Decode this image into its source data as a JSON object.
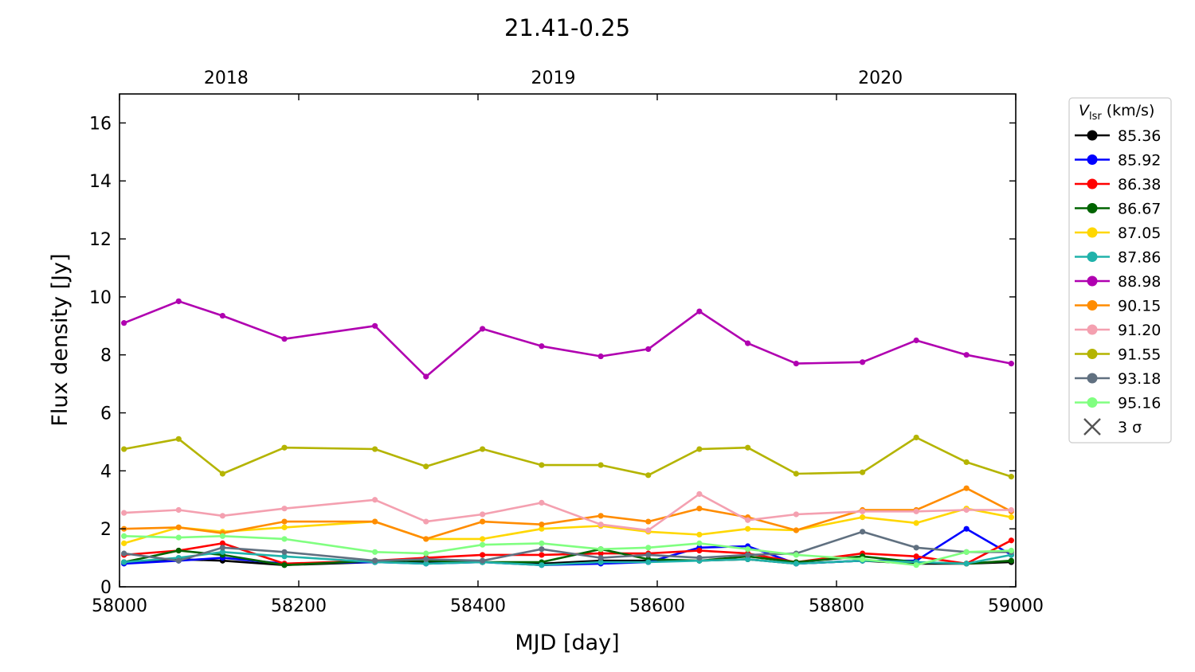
{
  "chart_data": {
    "type": "line",
    "title": "21.41-0.25",
    "xlabel": "MJD [day]",
    "ylabel": "Flux density [Jy]",
    "xlim": [
      58000,
      59000
    ],
    "ylim": [
      0,
      17
    ],
    "x_ticks": [
      58000,
      58200,
      58400,
      58600,
      58800,
      59000
    ],
    "y_ticks": [
      0,
      2,
      4,
      6,
      8,
      10,
      12,
      14,
      16
    ],
    "top_axis": {
      "labels": [
        "2018",
        "2019",
        "2020"
      ],
      "positions": [
        58119,
        58484,
        58849
      ]
    },
    "grid": false,
    "legend": {
      "title_symbol": "V",
      "title_subscript": "lsr",
      "title_unit": "(km/s)",
      "placement": "outside-right",
      "sigma_label": "3 σ"
    },
    "x": [
      58005,
      58066,
      58115,
      58184,
      58285,
      58342,
      58405,
      58471,
      58537,
      58590,
      58647,
      58701,
      58755,
      58829,
      58889,
      58945,
      58995
    ],
    "series": [
      {
        "name": "85.36",
        "color": "#000000",
        "values": [
          0.85,
          0.95,
          0.9,
          0.75,
          0.85,
          0.85,
          0.85,
          0.8,
          0.9,
          0.9,
          0.9,
          0.95,
          0.8,
          0.9,
          0.8,
          0.8,
          0.85
        ]
      },
      {
        "name": "85.92",
        "color": "#0000ff",
        "values": [
          0.8,
          0.9,
          1.0,
          0.8,
          0.85,
          0.8,
          0.85,
          0.75,
          0.8,
          0.85,
          1.35,
          1.4,
          0.8,
          0.9,
          0.9,
          2.0,
          1.1
        ]
      },
      {
        "name": "86.38",
        "color": "#ff0000",
        "values": [
          1.1,
          1.25,
          1.5,
          0.8,
          0.9,
          1.0,
          1.1,
          1.1,
          1.15,
          1.15,
          1.25,
          1.15,
          0.85,
          1.15,
          1.05,
          0.8,
          1.6
        ]
      },
      {
        "name": "86.67",
        "color": "#006400",
        "values": [
          0.85,
          1.25,
          1.1,
          0.75,
          0.9,
          0.9,
          0.85,
          0.85,
          1.3,
          0.95,
          0.9,
          1.05,
          0.85,
          1.05,
          0.85,
          0.8,
          0.9
        ]
      },
      {
        "name": "87.05",
        "color": "#ffd700",
        "values": [
          1.5,
          2.05,
          1.9,
          2.05,
          2.25,
          1.65,
          1.65,
          2.0,
          2.1,
          1.9,
          1.8,
          2.0,
          1.95,
          2.4,
          2.2,
          2.7,
          2.4
        ]
      },
      {
        "name": "87.86",
        "color": "#20b2aa",
        "values": [
          0.85,
          1.0,
          1.2,
          1.05,
          0.85,
          0.8,
          0.85,
          0.75,
          0.85,
          0.85,
          0.9,
          0.95,
          0.8,
          0.9,
          0.85,
          0.8,
          1.1
        ]
      },
      {
        "name": "88.98",
        "color": "#b000b0",
        "values": [
          9.1,
          9.85,
          9.35,
          8.55,
          9.0,
          7.25,
          8.9,
          8.3,
          7.95,
          8.2,
          9.5,
          8.4,
          7.7,
          7.75,
          8.5,
          8.0,
          7.7
        ]
      },
      {
        "name": "90.15",
        "color": "#ff8c00",
        "values": [
          2.0,
          2.05,
          1.85,
          2.25,
          2.25,
          1.65,
          2.25,
          2.15,
          2.45,
          2.25,
          2.7,
          2.4,
          1.95,
          2.65,
          2.65,
          3.4,
          2.6
        ]
      },
      {
        "name": "91.20",
        "color": "#f4a0b0",
        "values": [
          2.55,
          2.65,
          2.45,
          2.7,
          3.0,
          2.25,
          2.5,
          2.9,
          2.15,
          1.95,
          3.2,
          2.3,
          2.5,
          2.6,
          2.6,
          2.65,
          2.65
        ]
      },
      {
        "name": "91.55",
        "color": "#b4b400",
        "values": [
          4.75,
          5.1,
          3.9,
          4.8,
          4.75,
          4.15,
          4.75,
          4.2,
          4.2,
          3.85,
          4.75,
          4.8,
          3.9,
          3.95,
          5.15,
          4.3,
          3.8
        ]
      },
      {
        "name": "93.18",
        "color": "#607080",
        "values": [
          1.15,
          0.9,
          1.35,
          1.2,
          0.9,
          0.95,
          0.9,
          1.3,
          1.0,
          1.1,
          1.0,
          1.1,
          1.15,
          1.9,
          1.35,
          1.2,
          1.2
        ]
      },
      {
        "name": "95.16",
        "color": "#80ff80",
        "values": [
          1.75,
          1.7,
          1.75,
          1.65,
          1.2,
          1.15,
          1.45,
          1.5,
          1.3,
          1.35,
          1.5,
          1.3,
          1.1,
          0.95,
          0.75,
          1.2,
          1.25
        ]
      }
    ]
  }
}
